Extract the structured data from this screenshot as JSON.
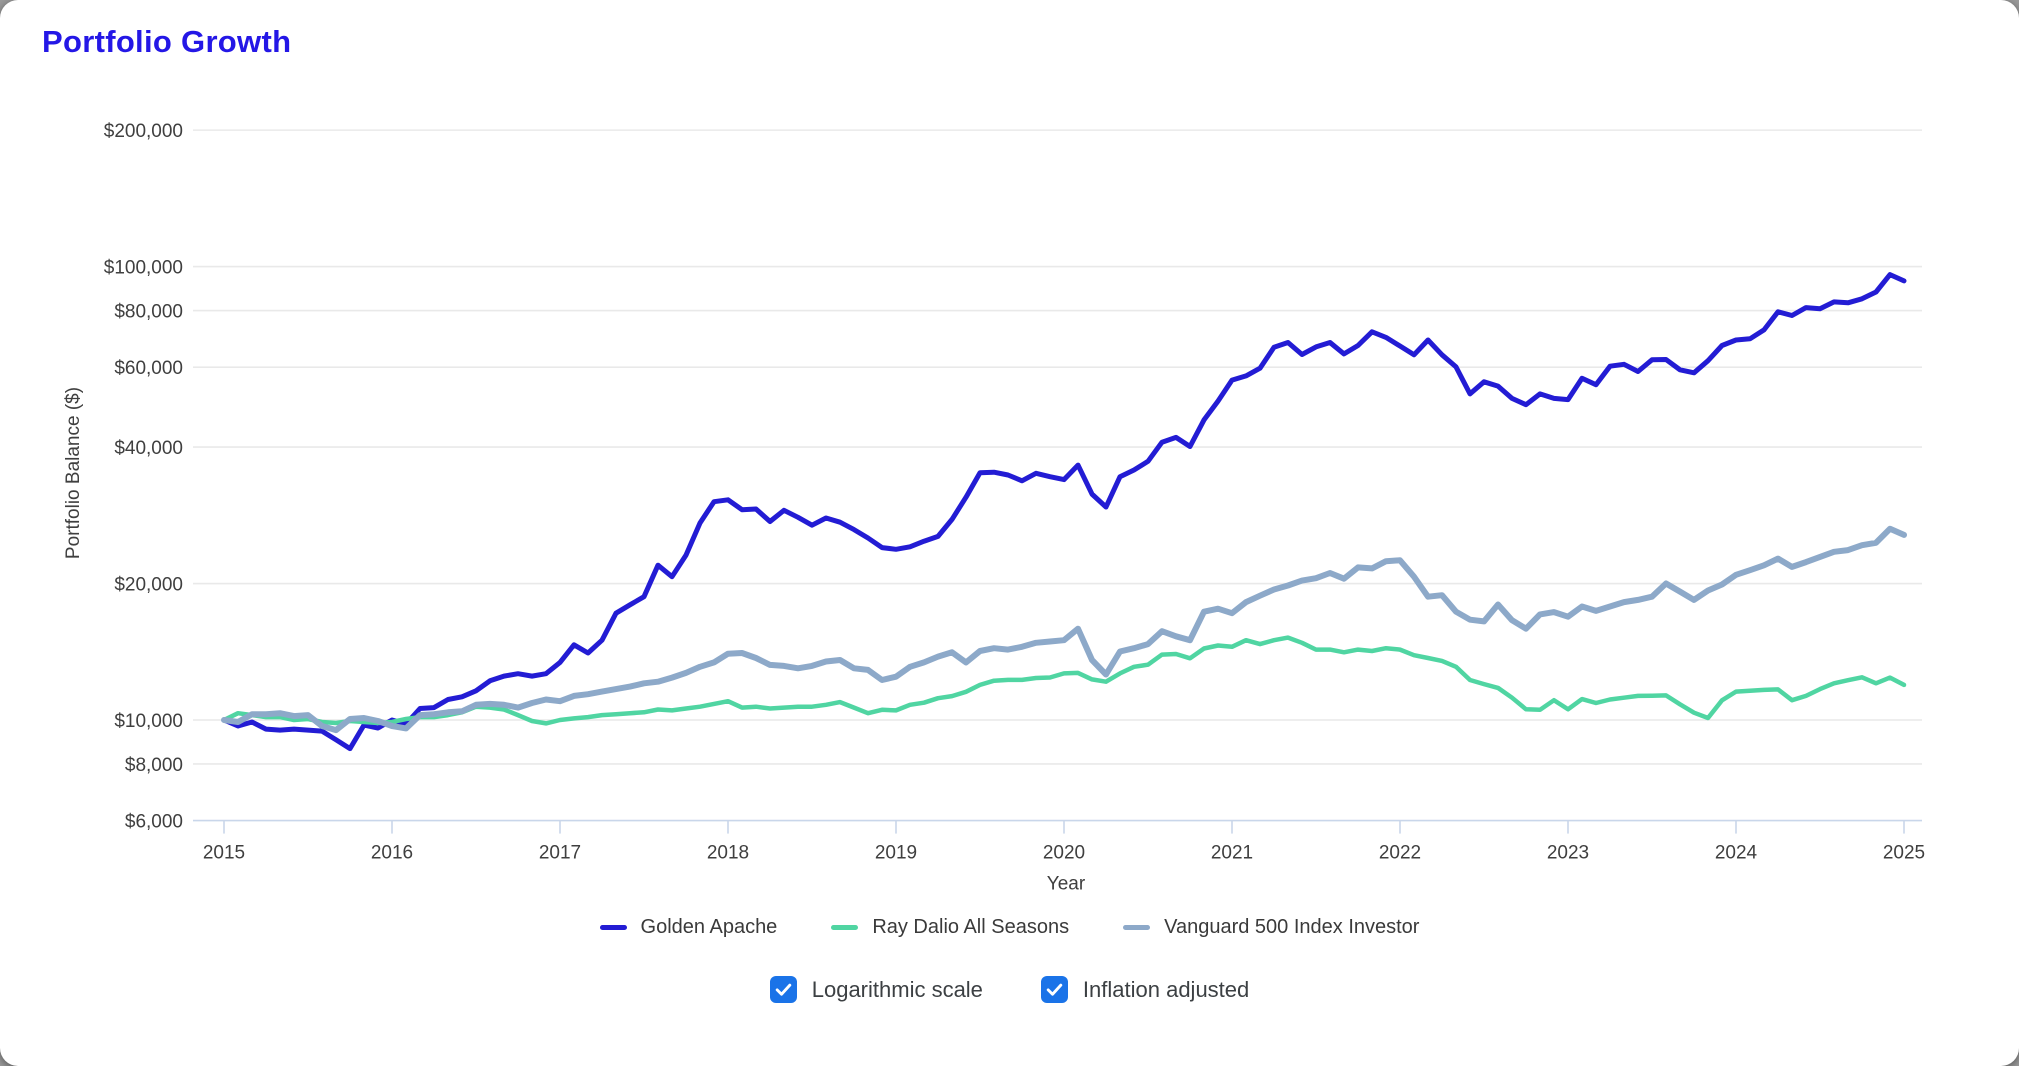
{
  "title": "Portfolio Growth",
  "chart_data": {
    "type": "line",
    "title": "Portfolio Growth",
    "xlabel": "Year",
    "ylabel": "Portfolio Balance ($)",
    "y_scale": "log",
    "ylim": [
      6000,
      220000
    ],
    "grid": "horizontal",
    "legend_position": "bottom",
    "x_start_year": 2015,
    "points_per_year": 12,
    "x_ticks": [
      "2015",
      "2016",
      "2017",
      "2018",
      "2019",
      "2020",
      "2021",
      "2022",
      "2023",
      "2024",
      "2025"
    ],
    "y_ticks": [
      {
        "value": 200000,
        "label": "$200,000"
      },
      {
        "value": 100000,
        "label": "$100,000"
      },
      {
        "value": 80000,
        "label": "$80,000"
      },
      {
        "value": 60000,
        "label": "$60,000"
      },
      {
        "value": 40000,
        "label": "$40,000"
      },
      {
        "value": 20000,
        "label": "$20,000"
      },
      {
        "value": 10000,
        "label": "$10,000"
      },
      {
        "value": 8000,
        "label": "$8,000"
      },
      {
        "value": 6000,
        "label": "$6,000"
      }
    ],
    "series": [
      {
        "name": "Golden Apache",
        "color": "#231cd4",
        "width": 5,
        "values": [
          10000,
          9700,
          9900,
          9550,
          9500,
          9550,
          9500,
          9450,
          9050,
          8650,
          9750,
          9600,
          10000,
          9800,
          10600,
          10650,
          11100,
          11250,
          11600,
          12200,
          12500,
          12650,
          12500,
          12650,
          13400,
          14650,
          14050,
          15000,
          17200,
          17950,
          18700,
          21950,
          20700,
          23100,
          27200,
          30300,
          30600,
          29100,
          29200,
          27400,
          29000,
          28000,
          26900,
          27900,
          27300,
          26300,
          25200,
          24000,
          23800,
          24100,
          24800,
          25400,
          27700,
          31000,
          35100,
          35200,
          34700,
          33700,
          35000,
          34400,
          33900,
          36500,
          31500,
          29500,
          34400,
          35600,
          37200,
          41000,
          42000,
          40100,
          45900,
          50500,
          56200,
          57400,
          59700,
          66400,
          68000,
          64000,
          66500,
          68000,
          64200,
          67000,
          71800,
          69800,
          66800,
          63900,
          68900,
          63900,
          60100,
          52400,
          55700,
          54500,
          51200,
          49600,
          52400,
          51200,
          50900,
          56700,
          54900,
          60300,
          60900,
          58700,
          62300,
          62400,
          59200,
          58300,
          62000,
          67000,
          68900,
          69300,
          72500,
          79500,
          78000,
          81200,
          80700,
          83600,
          83200,
          84900,
          87900,
          96000,
          93000
        ]
      },
      {
        "name": "Ray Dalio All Seasons",
        "color": "#50d5a2",
        "width": 4.5,
        "values": [
          10000,
          10350,
          10250,
          10150,
          10150,
          10000,
          10050,
          9900,
          9850,
          9950,
          9900,
          9850,
          9900,
          10050,
          10150,
          10150,
          10250,
          10400,
          10700,
          10650,
          10550,
          10250,
          9950,
          9830,
          10000,
          10080,
          10150,
          10250,
          10300,
          10350,
          10400,
          10550,
          10500,
          10600,
          10700,
          10850,
          11000,
          10650,
          10700,
          10600,
          10650,
          10700,
          10700,
          10800,
          10950,
          10650,
          10350,
          10530,
          10500,
          10800,
          10920,
          11170,
          11290,
          11540,
          11950,
          12210,
          12260,
          12260,
          12380,
          12410,
          12670,
          12700,
          12290,
          12150,
          12670,
          13100,
          13240,
          13940,
          13980,
          13680,
          14380,
          14600,
          14500,
          15000,
          14700,
          15000,
          15200,
          14800,
          14300,
          14300,
          14100,
          14300,
          14200,
          14400,
          14300,
          13900,
          13700,
          13500,
          13100,
          12250,
          12000,
          11770,
          11200,
          10560,
          10530,
          11060,
          10560,
          11120,
          10900,
          11100,
          11200,
          11300,
          11310,
          11330,
          10830,
          10380,
          10100,
          11050,
          11550,
          11600,
          11650,
          11680,
          11060,
          11300,
          11700,
          12050,
          12240,
          12420,
          12050,
          12400,
          11950
        ]
      },
      {
        "name": "Vanguard 500 Index Investor",
        "color": "#8da9c9",
        "width": 6,
        "values": [
          10000,
          9900,
          10300,
          10300,
          10350,
          10200,
          10250,
          9700,
          9500,
          10050,
          10100,
          9950,
          9700,
          9580,
          10250,
          10300,
          10400,
          10450,
          10800,
          10850,
          10800,
          10650,
          10900,
          11100,
          11000,
          11300,
          11400,
          11550,
          11700,
          11850,
          12050,
          12150,
          12400,
          12700,
          13100,
          13400,
          14000,
          14050,
          13700,
          13230,
          13160,
          13000,
          13160,
          13460,
          13560,
          13000,
          12900,
          12250,
          12460,
          13100,
          13400,
          13800,
          14100,
          13400,
          14200,
          14400,
          14300,
          14500,
          14800,
          14900,
          15000,
          15900,
          13560,
          12600,
          14160,
          14400,
          14700,
          15700,
          15300,
          15000,
          17330,
          17600,
          17200,
          18200,
          18800,
          19400,
          19800,
          20300,
          20550,
          21100,
          20500,
          21700,
          21600,
          22400,
          22500,
          20700,
          18700,
          18850,
          17330,
          16640,
          16500,
          17980,
          16600,
          15900,
          17100,
          17300,
          16900,
          17800,
          17400,
          17800,
          18200,
          18400,
          18700,
          20000,
          19200,
          18400,
          19300,
          19900,
          20900,
          21400,
          21940,
          22700,
          21760,
          22300,
          22900,
          23500,
          23700,
          24300,
          24600,
          26400,
          25600
        ]
      }
    ]
  },
  "controls": {
    "log_scale": {
      "label": "Logarithmic scale",
      "checked": true
    },
    "inflation": {
      "label": "Inflation adjusted",
      "checked": true
    }
  },
  "colors": {
    "title": "#2417e6",
    "checkbox_fill": "#1a73e8",
    "axis_text": "#3f3f3f",
    "grid_line": "#e9e9e9",
    "axis_line": "#c9d6ea",
    "legend_text": "#3a3a3a"
  }
}
